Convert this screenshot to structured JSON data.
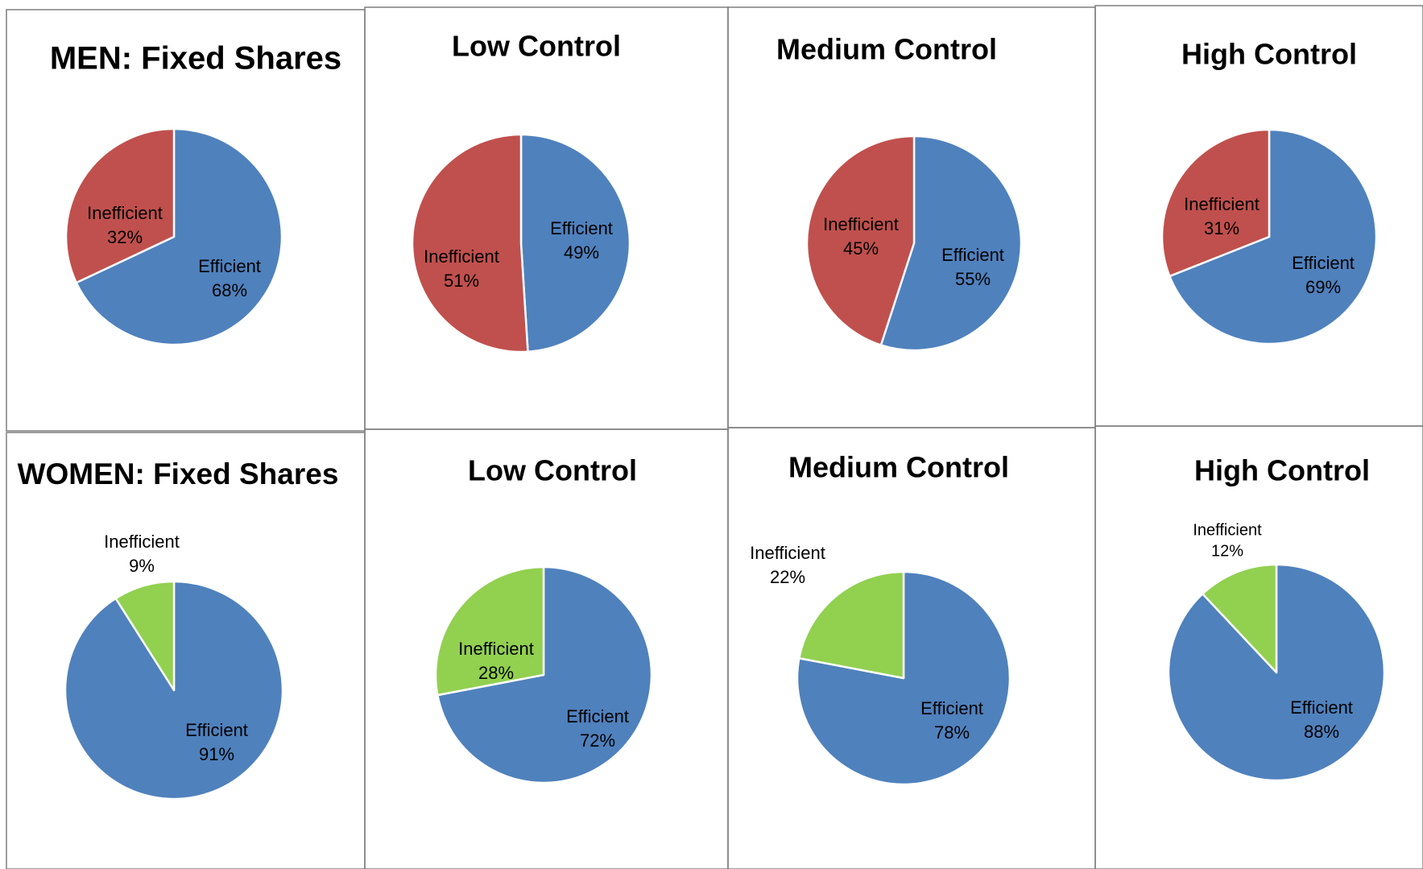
{
  "colors": {
    "efficient": "#4f81bd",
    "inefficient_men": "#c0504d",
    "inefficient_women": "#92d050",
    "border": "#7f7f7f",
    "text": "#000000"
  },
  "chart_data": [
    {
      "type": "pie",
      "title": "MEN: Fixed Shares",
      "slices": [
        {
          "label": "Efficient",
          "value": 68,
          "display": "68%"
        },
        {
          "label": "Inefficient",
          "value": 32,
          "display": "32%"
        }
      ]
    },
    {
      "type": "pie",
      "title": "Low Control",
      "slices": [
        {
          "label": "Efficient",
          "value": 49,
          "display": "49%"
        },
        {
          "label": "Inefficient",
          "value": 51,
          "display": "51%"
        }
      ]
    },
    {
      "type": "pie",
      "title": "Medium Control",
      "slices": [
        {
          "label": "Efficient",
          "value": 55,
          "display": "55%"
        },
        {
          "label": "Inefficient",
          "value": 45,
          "display": "45%"
        }
      ]
    },
    {
      "type": "pie",
      "title": "High Control",
      "slices": [
        {
          "label": "Efficient",
          "value": 69,
          "display": "69%"
        },
        {
          "label": "Inefficient",
          "value": 31,
          "display": "31%"
        }
      ]
    },
    {
      "type": "pie",
      "title": "WOMEN: Fixed Shares",
      "slices": [
        {
          "label": "Efficient",
          "value": 91,
          "display": "91%"
        },
        {
          "label": "Inefficient",
          "value": 9,
          "display": "9%"
        }
      ]
    },
    {
      "type": "pie",
      "title": "Low Control",
      "slices": [
        {
          "label": "Efficient",
          "value": 72,
          "display": "72%"
        },
        {
          "label": "Inefficient",
          "value": 28,
          "display": "28%"
        }
      ]
    },
    {
      "type": "pie",
      "title": "Medium Control",
      "slices": [
        {
          "label": "Efficient",
          "value": 78,
          "display": "78%"
        },
        {
          "label": "Inefficient",
          "value": 22,
          "display": "22%"
        }
      ]
    },
    {
      "type": "pie",
      "title": "High Control",
      "slices": [
        {
          "label": "Efficient",
          "value": 88,
          "display": "88%"
        },
        {
          "label": "Inefficient",
          "value": 12,
          "display": "12%"
        }
      ]
    }
  ]
}
